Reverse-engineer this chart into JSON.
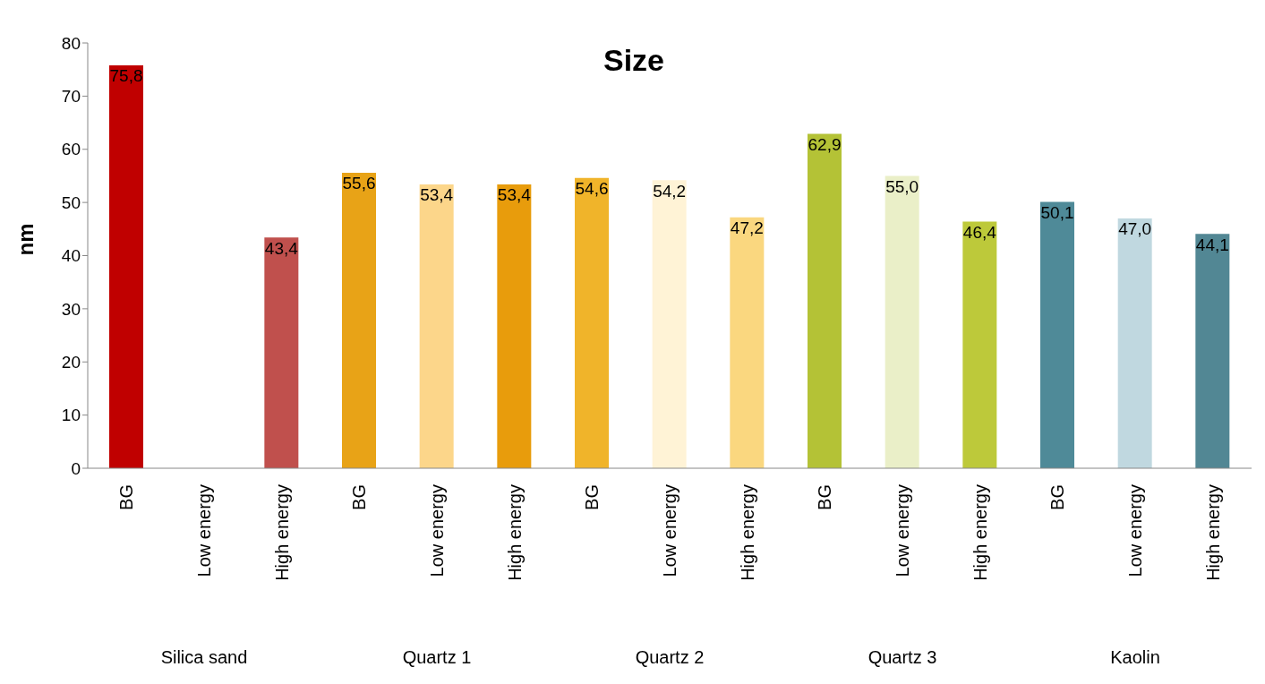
{
  "chart_data": {
    "type": "bar",
    "title": "Size",
    "ylabel": "nm",
    "categories": [
      "BG",
      "Low energy",
      "High energy",
      "BG",
      "Low energy",
      "High energy",
      "BG",
      "Low energy",
      "High energy",
      "BG",
      "Low energy",
      "High energy",
      "BG",
      "Low energy",
      "High energy"
    ],
    "values": [
      75.8,
      null,
      43.4,
      55.6,
      53.4,
      53.4,
      54.6,
      54.2,
      47.2,
      62.9,
      55.0,
      46.4,
      50.1,
      47.0,
      44.1
    ],
    "value_labels": [
      "75,8",
      null,
      "43,4",
      "55,6",
      "53,4",
      "53,4",
      "54,6",
      "54,2",
      "47,2",
      "62,9",
      "55,0",
      "46,4",
      "50,1",
      "47,0",
      "44,1"
    ],
    "colors": [
      "#c00000",
      "#c0504d",
      "#c0504d",
      "#e8a317",
      "#fcd68a",
      "#e89c0c",
      "#f0b42a",
      "#fff3d6",
      "#fad77f",
      "#b4c236",
      "#eaefc8",
      "#bdc93a",
      "#4f8a98",
      "#c0d8e0",
      "#528794"
    ],
    "annotations": [
      "Silica sand",
      "Quartz 1",
      "Quartz 2",
      "Quartz 3",
      "Kaolin"
    ],
    "ylim": [
      0,
      80
    ],
    "yticks": [
      0,
      10,
      20,
      30,
      40,
      50,
      60,
      70,
      80
    ],
    "grid": false,
    "legend": false
  }
}
